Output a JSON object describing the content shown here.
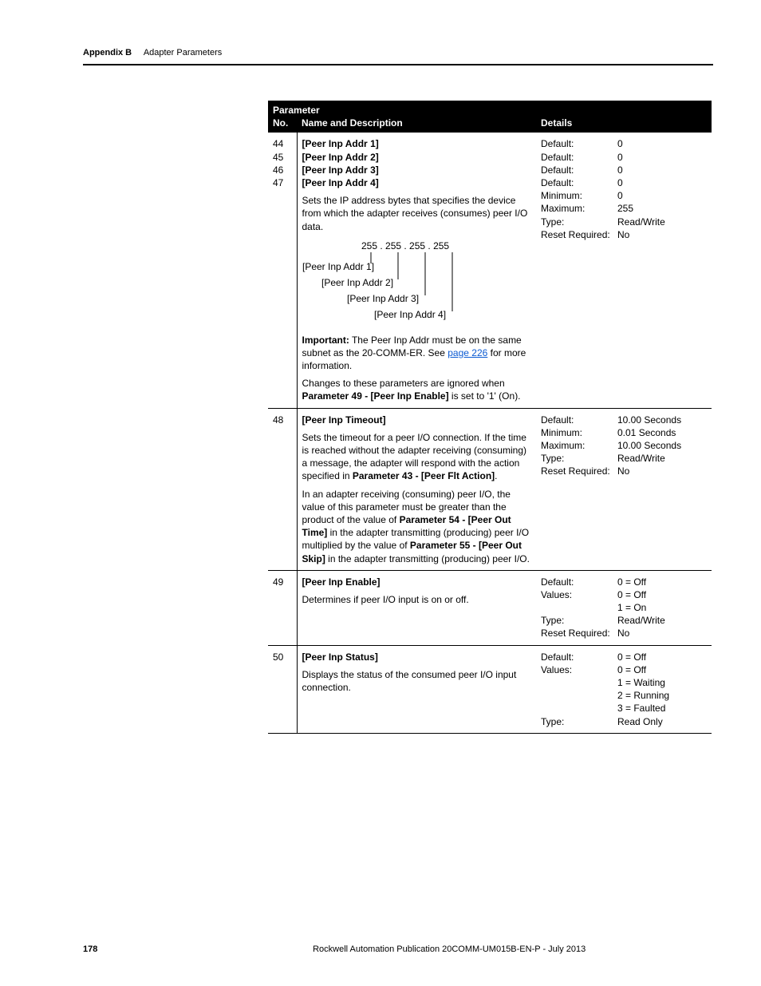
{
  "runningHead": {
    "section": "Appendix B",
    "title": "Adapter Parameters"
  },
  "tableHeader": {
    "super": "Parameter",
    "no": "No.",
    "name": "Name and Description",
    "details": "Details"
  },
  "rows": {
    "r1": {
      "nos": "44\n45\n46\n47",
      "names": "[Peer Inp Addr 1]\n[Peer Inp Addr 2]\n[Peer Inp Addr 3]\n[Peer Inp Addr 4]",
      "desc1": "Sets the IP address bytes that specifies the device from which the adapter receives (consumes) peer I/O data.",
      "diagram": {
        "ip": "255 . 255 . 255 . 255",
        "l1": "[Peer Inp Addr 1]",
        "l2": "[Peer Inp Addr 2]",
        "l3": "[Peer Inp Addr 3]",
        "l4": "[Peer Inp Addr 4]"
      },
      "importantLabel": "Important:",
      "importantText1": " The Peer Inp Addr must be on the same subnet as the 20-COMM-ER. See ",
      "importantLink": "page 226",
      "importantText2": " for more information.",
      "desc2a": "Changes to these parameters are ignored when ",
      "desc2bold": "Parameter 49 - [Peer Inp Enable]",
      "desc2b": " is set to '1' (On).",
      "details": [
        [
          "Default:",
          "0"
        ],
        [
          "Default:",
          "0"
        ],
        [
          "Default:",
          "0"
        ],
        [
          "Default:",
          "0"
        ],
        [
          "Minimum:",
          "0"
        ],
        [
          "Maximum:",
          "255"
        ],
        [
          "Type:",
          "Read/Write"
        ],
        [
          "Reset Required:",
          "No"
        ]
      ]
    },
    "r2": {
      "no": "48",
      "pname": "[Peer Inp Timeout]",
      "p1a": "Sets the timeout for a peer I/O connection. If the time is reached without the adapter receiving (consuming) a message, the adapter will respond with the action specified in ",
      "p1bold": "Parameter 43 - [Peer Flt Action]",
      "p1b": ".",
      "p2a": "In an adapter receiving (consuming) peer I/O, the value of this parameter must be greater than the product of the value of ",
      "p2bold1": "Parameter 54 - [Peer Out Time]",
      "p2mid": " in the adapter transmitting (producing) peer I/O multiplied by the value of ",
      "p2bold2": "Parameter 55 - [Peer Out Skip]",
      "p2b": " in the adapter transmitting (producing) peer I/O.",
      "details": [
        [
          "Default:",
          "10.00 Seconds"
        ],
        [
          "Minimum:",
          "0.01 Seconds"
        ],
        [
          "Maximum:",
          "10.00 Seconds"
        ],
        [
          "Type:",
          "Read/Write"
        ],
        [
          "Reset Required:",
          "No"
        ]
      ]
    },
    "r3": {
      "no": "49",
      "pname": "[Peer Inp Enable]",
      "desc": "Determines if peer I/O input is on or off.",
      "details": [
        [
          "Default:",
          "0 = Off"
        ],
        [
          "Values:",
          "0 = Off"
        ],
        [
          "",
          "1 = On"
        ],
        [
          "Type:",
          "Read/Write"
        ],
        [
          "Reset Required:",
          "No"
        ]
      ]
    },
    "r4": {
      "no": "50",
      "pname": "[Peer Inp Status]",
      "desc": "Displays the status of the consumed peer I/O input connection.",
      "details": [
        [
          "Default:",
          "0 = Off"
        ],
        [
          "Values:",
          "0 = Off"
        ],
        [
          "",
          "1 = Waiting"
        ],
        [
          "",
          "2 = Running"
        ],
        [
          "",
          "3 = Faulted"
        ],
        [
          "Type:",
          "Read Only"
        ]
      ]
    }
  },
  "footer": {
    "pageNum": "178",
    "publication": "Rockwell Automation Publication  20COMM-UM015B-EN-P - July 2013"
  }
}
